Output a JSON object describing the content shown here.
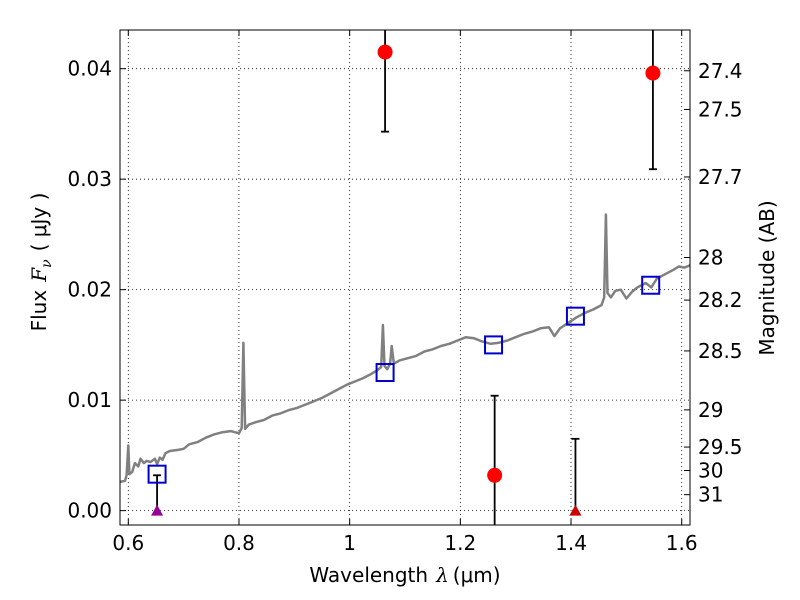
{
  "chart_data": {
    "type": "scatter",
    "xlabel": {
      "text": "Wavelength",
      "symbol": "λ",
      "unit": "(μm)"
    },
    "ylabel": {
      "text": "Flux",
      "symbol": "F",
      "subscript": "ν",
      "unit": "( μJy )"
    },
    "y2label": "Magnitude (AB)",
    "xlim": [
      0.585,
      1.615
    ],
    "ylim": [
      -0.0013,
      0.0435
    ],
    "grid": true,
    "x_ticks": [
      0.6,
      0.8,
      1.0,
      1.2,
      1.4,
      1.6
    ],
    "x_tick_labels": [
      "0.6",
      "0.8",
      "1",
      "1.2",
      "1.4",
      "1.6"
    ],
    "y_ticks": [
      0.0,
      0.01,
      0.02,
      0.03,
      0.04
    ],
    "y_tick_labels": [
      "0.00",
      "0.01",
      "0.02",
      "0.03",
      "0.04"
    ],
    "y2_ticks": [
      {
        "mag": 27.4,
        "label": "27.4"
      },
      {
        "mag": 27.5,
        "label": "27.5"
      },
      {
        "mag": 27.7,
        "label": "27.7"
      },
      {
        "mag": 28.0,
        "label": "28"
      },
      {
        "mag": 28.2,
        "label": "28.2"
      },
      {
        "mag": 28.5,
        "label": "28.5"
      },
      {
        "mag": 29.0,
        "label": "29"
      },
      {
        "mag": 29.5,
        "label": "29.5"
      },
      {
        "mag": 30.0,
        "label": "30"
      },
      {
        "mag": 31.0,
        "label": "31"
      }
    ],
    "series": [
      {
        "kind": "line",
        "color": "#808080",
        "points": [
          [
            0.585,
            0.0026
          ],
          [
            0.594,
            0.0027
          ],
          [
            0.597,
            0.0032
          ],
          [
            0.6,
            0.0059
          ],
          [
            0.602,
            0.0033
          ],
          [
            0.607,
            0.0035
          ],
          [
            0.612,
            0.0043
          ],
          [
            0.618,
            0.004
          ],
          [
            0.622,
            0.0047
          ],
          [
            0.628,
            0.0043
          ],
          [
            0.633,
            0.0045
          ],
          [
            0.64,
            0.0044
          ],
          [
            0.648,
            0.0047
          ],
          [
            0.652,
            0.0042
          ],
          [
            0.657,
            0.0048
          ],
          [
            0.662,
            0.0046
          ],
          [
            0.667,
            0.0052
          ],
          [
            0.675,
            0.0054
          ],
          [
            0.69,
            0.0055
          ],
          [
            0.7,
            0.0056
          ],
          [
            0.71,
            0.006
          ],
          [
            0.725,
            0.0062
          ],
          [
            0.74,
            0.0066
          ],
          [
            0.755,
            0.0069
          ],
          [
            0.77,
            0.0071
          ],
          [
            0.785,
            0.0072
          ],
          [
            0.8,
            0.007
          ],
          [
            0.805,
            0.0075
          ],
          [
            0.808,
            0.0152
          ],
          [
            0.811,
            0.0074
          ],
          [
            0.818,
            0.0078
          ],
          [
            0.83,
            0.008
          ],
          [
            0.845,
            0.0082
          ],
          [
            0.86,
            0.0086
          ],
          [
            0.875,
            0.0088
          ],
          [
            0.89,
            0.0091
          ],
          [
            0.905,
            0.0093
          ],
          [
            0.92,
            0.0096
          ],
          [
            0.935,
            0.0099
          ],
          [
            0.95,
            0.0102
          ],
          [
            0.965,
            0.0106
          ],
          [
            0.98,
            0.011
          ],
          [
            0.995,
            0.0114
          ],
          [
            1.01,
            0.0117
          ],
          [
            1.025,
            0.012
          ],
          [
            1.04,
            0.0124
          ],
          [
            1.05,
            0.0127
          ],
          [
            1.057,
            0.013
          ],
          [
            1.06,
            0.0168
          ],
          [
            1.063,
            0.0131
          ],
          [
            1.068,
            0.0128
          ],
          [
            1.073,
            0.0133
          ],
          [
            1.076,
            0.0149
          ],
          [
            1.08,
            0.0133
          ],
          [
            1.09,
            0.0136
          ],
          [
            1.105,
            0.0138
          ],
          [
            1.12,
            0.014
          ],
          [
            1.135,
            0.0144
          ],
          [
            1.15,
            0.0146
          ],
          [
            1.165,
            0.0149
          ],
          [
            1.18,
            0.0151
          ],
          [
            1.195,
            0.0154
          ],
          [
            1.21,
            0.0157
          ],
          [
            1.225,
            0.0156
          ],
          [
            1.24,
            0.0153
          ],
          [
            1.255,
            0.0151
          ],
          [
            1.27,
            0.0152
          ],
          [
            1.285,
            0.0154
          ],
          [
            1.3,
            0.0157
          ],
          [
            1.315,
            0.016
          ],
          [
            1.33,
            0.0162
          ],
          [
            1.345,
            0.0165
          ],
          [
            1.36,
            0.0166
          ],
          [
            1.37,
            0.0158
          ],
          [
            1.38,
            0.0165
          ],
          [
            1.395,
            0.017
          ],
          [
            1.41,
            0.0175
          ],
          [
            1.425,
            0.0179
          ],
          [
            1.44,
            0.0182
          ],
          [
            1.455,
            0.0186
          ],
          [
            1.46,
            0.0193
          ],
          [
            1.463,
            0.0268
          ],
          [
            1.466,
            0.0197
          ],
          [
            1.472,
            0.0193
          ],
          [
            1.48,
            0.0199
          ],
          [
            1.49,
            0.02
          ],
          [
            1.5,
            0.0192
          ],
          [
            1.51,
            0.0198
          ],
          [
            1.52,
            0.0202
          ],
          [
            1.535,
            0.0206
          ],
          [
            1.545,
            0.0202
          ],
          [
            1.555,
            0.021
          ],
          [
            1.57,
            0.0214
          ],
          [
            1.585,
            0.0218
          ],
          [
            1.595,
            0.0221
          ],
          [
            1.605,
            0.022
          ],
          [
            1.615,
            0.0222
          ]
        ]
      },
      {
        "kind": "squares",
        "color": "#0000cc",
        "points": [
          [
            0.652,
            0.0033
          ],
          [
            1.064,
            0.0125
          ],
          [
            1.26,
            0.015
          ],
          [
            1.408,
            0.0176
          ],
          [
            1.544,
            0.0204
          ]
        ]
      },
      {
        "kind": "circles",
        "color": "#ff0000",
        "points": [
          {
            "x": 1.064,
            "y": 0.0415,
            "err_low": 0.0072,
            "err_high": 0.002
          },
          {
            "x": 1.262,
            "y": 0.0032,
            "err_low": 0.0045,
            "err_high": 0.0072
          },
          {
            "x": 1.548,
            "y": 0.0396,
            "err_low": 0.0087,
            "err_high": 0.0039
          }
        ]
      },
      {
        "kind": "triangles",
        "points": [
          {
            "x": 0.652,
            "y": 0.0,
            "color": "#990099",
            "err_high": 0.0032
          },
          {
            "x": 1.408,
            "y": 0.0,
            "color": "#cc0000",
            "err_high": 0.0065
          }
        ]
      }
    ]
  }
}
